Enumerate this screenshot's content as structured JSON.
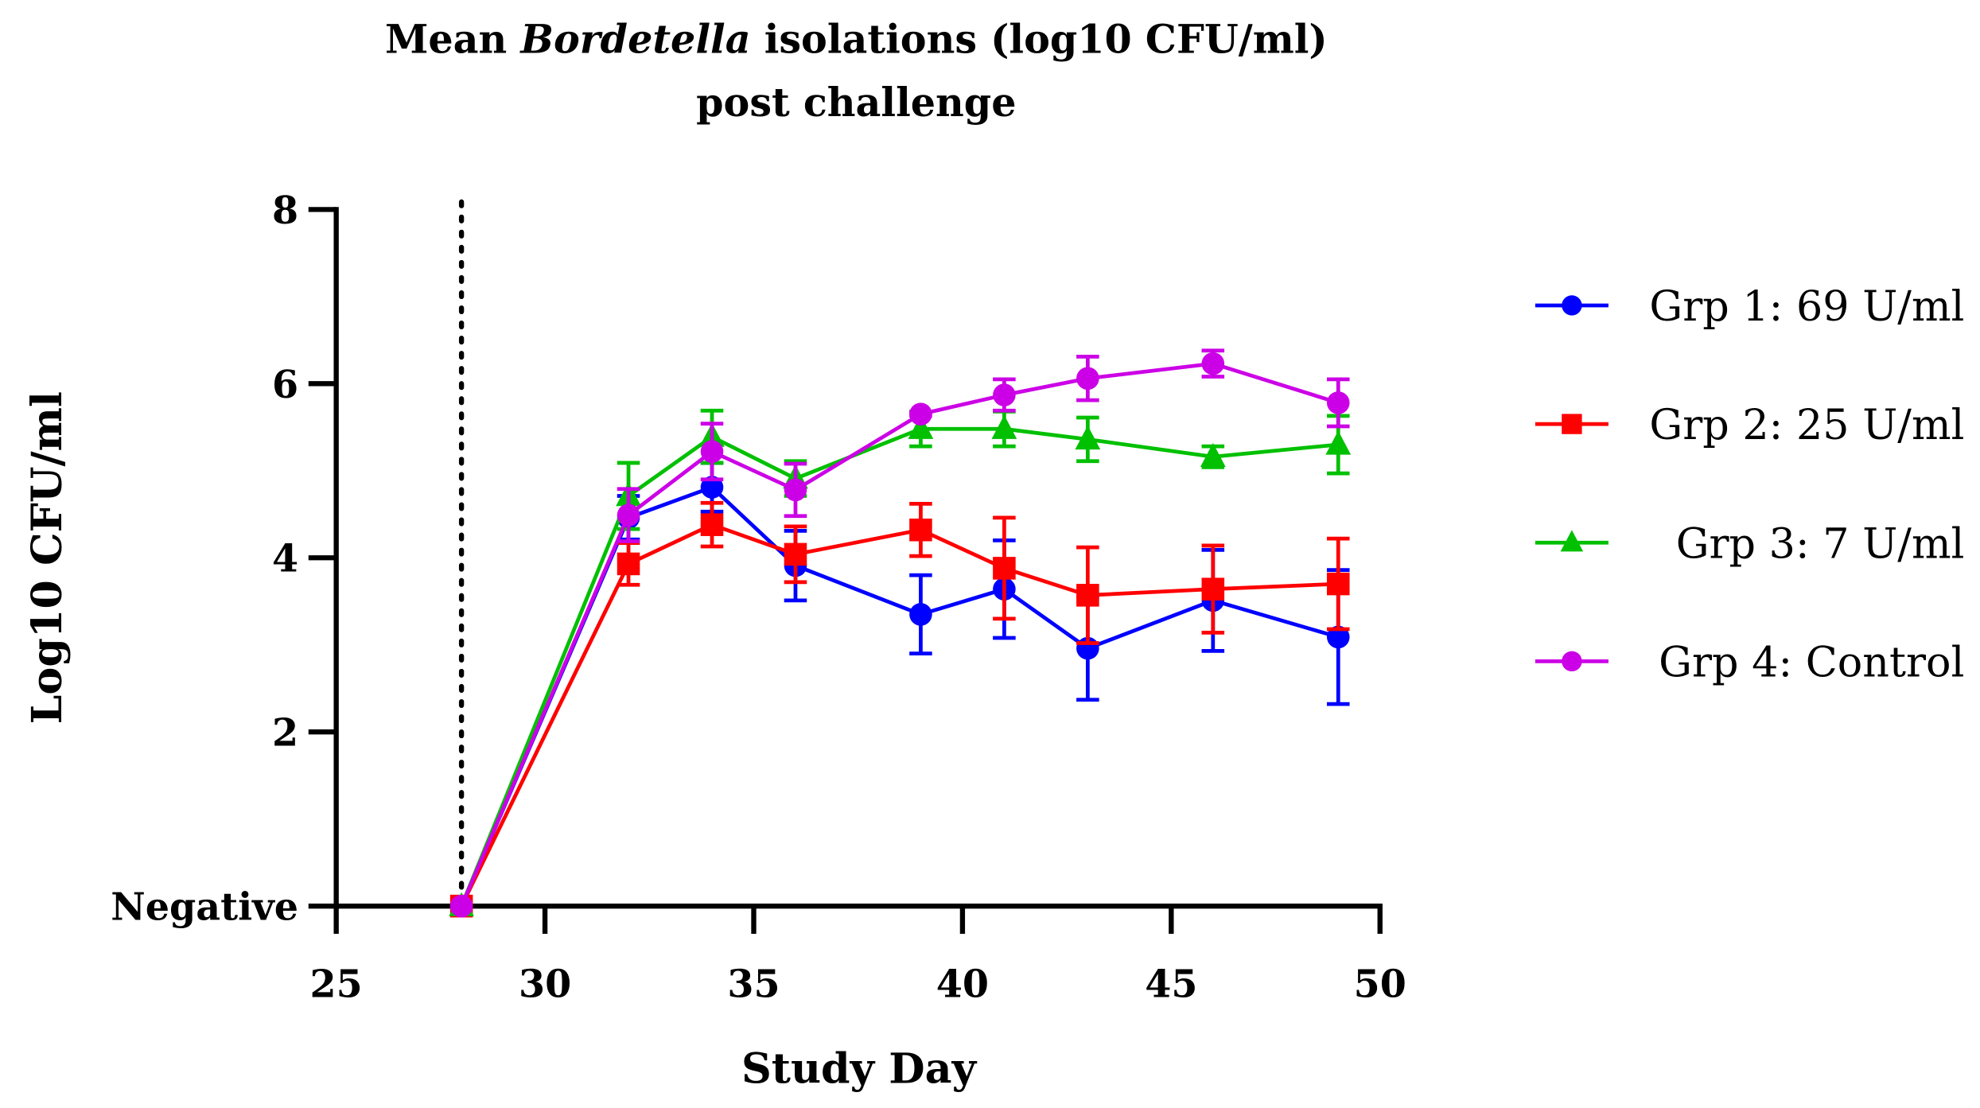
{
  "chart_data": {
    "type": "line",
    "title_line1_pre": "Mean ",
    "title_line1_italic": "Bordetella",
    "title_line1_post": " isolations (log10 CFU/ml)",
    "title_line2": "post challenge",
    "xlabel": "Study Day",
    "ylabel": "Log10 CFU/ml",
    "xlim": [
      25,
      50
    ],
    "ylim": [
      0,
      8
    ],
    "xticks": [
      25,
      30,
      35,
      40,
      45,
      50
    ],
    "yticks": [
      {
        "v": 0,
        "label": "Negative"
      },
      {
        "v": 2,
        "label": "2"
      },
      {
        "v": 4,
        "label": "4"
      },
      {
        "v": 6,
        "label": "6"
      },
      {
        "v": 8,
        "label": "8"
      }
    ],
    "vline": {
      "x": 28,
      "style": "dotted"
    },
    "legend_position": "right",
    "x": [
      28,
      32,
      34,
      36,
      39,
      41,
      43,
      46,
      49
    ],
    "series": [
      {
        "name": "Grp 1: 69 U/ml",
        "color": "#0000ff",
        "marker": "circle",
        "values": [
          0,
          4.46,
          4.81,
          3.91,
          3.35,
          3.64,
          2.96,
          3.51,
          3.09
        ],
        "errors": [
          0,
          0.25,
          0.28,
          0.4,
          0.45,
          0.56,
          0.59,
          0.58,
          0.77
        ]
      },
      {
        "name": "Grp 2: 25 U/ml",
        "color": "#ff0000",
        "marker": "square",
        "values": [
          0,
          3.93,
          4.38,
          4.04,
          4.32,
          3.88,
          3.57,
          3.64,
          3.7
        ],
        "errors": [
          0,
          0.24,
          0.25,
          0.32,
          0.3,
          0.58,
          0.55,
          0.5,
          0.52
        ]
      },
      {
        "name": "Grp 3: 7 U/ml",
        "color": "#00c000",
        "marker": "triangle",
        "values": [
          0,
          4.71,
          5.39,
          4.91,
          5.48,
          5.48,
          5.36,
          5.16,
          5.3
        ],
        "errors": [
          0,
          0.38,
          0.3,
          0.2,
          0.2,
          0.2,
          0.25,
          0.12,
          0.33
        ]
      },
      {
        "name": "Grp 4: Control",
        "color": "#cc00e6",
        "marker": "circle",
        "values": [
          0,
          4.49,
          5.22,
          4.78,
          5.65,
          5.87,
          6.06,
          6.23,
          5.78
        ],
        "errors": [
          0,
          0.3,
          0.32,
          0.3,
          0.02,
          0.18,
          0.25,
          0.15,
          0.27
        ]
      }
    ]
  }
}
